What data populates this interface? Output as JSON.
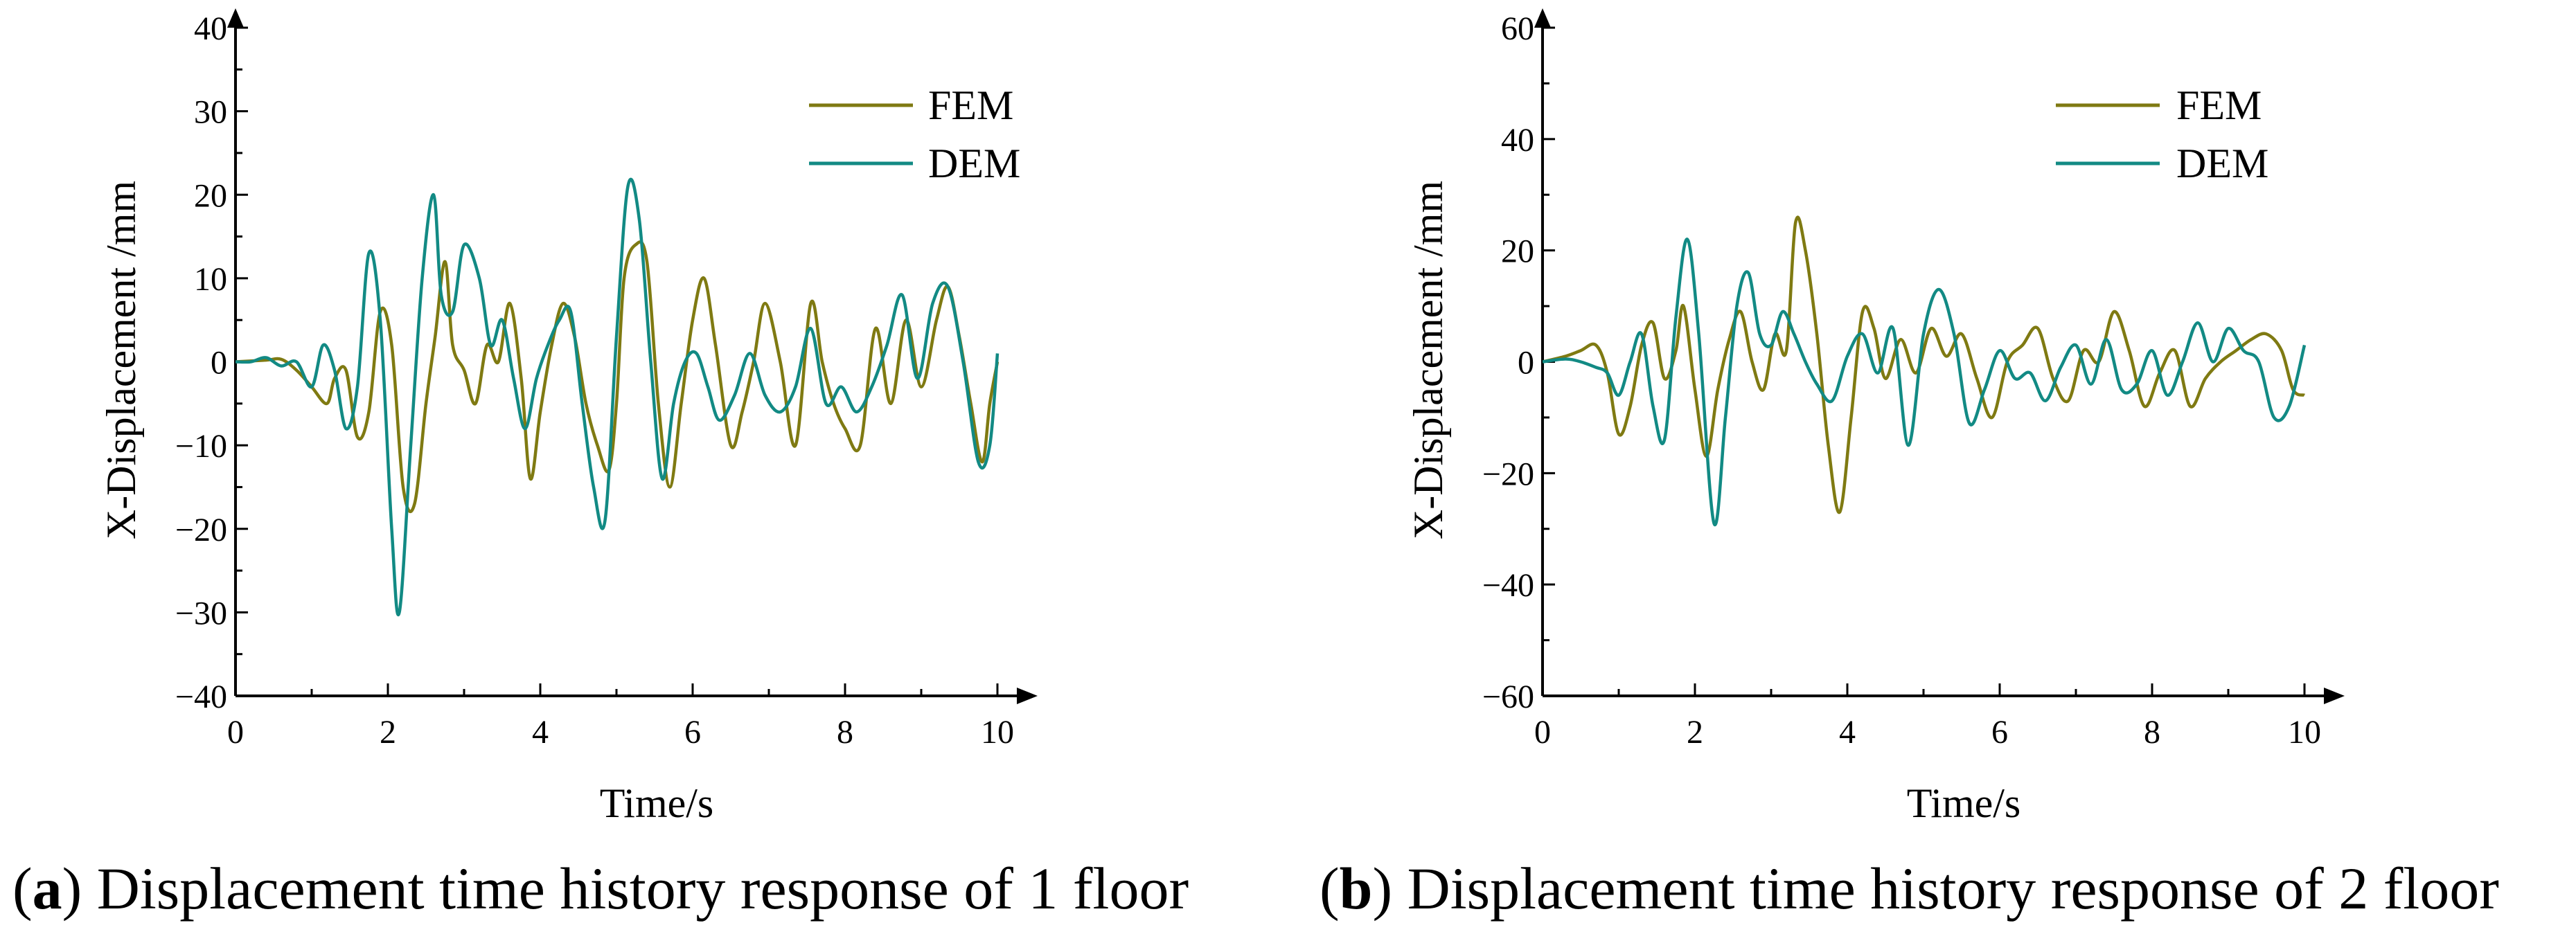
{
  "colors": {
    "fem": "#7f7a12",
    "dem": "#128a84",
    "axis": "#000000"
  },
  "chart_data": [
    {
      "type": "line",
      "panel": "a",
      "caption_label": "a",
      "caption_text": "Displacement time history response of 1 floor",
      "xlabel": "Time/s",
      "ylabel": "X-Displacement /mm",
      "xlim": [
        0,
        10
      ],
      "ylim": [
        -40,
        40
      ],
      "xticks": [
        0,
        2,
        4,
        6,
        8,
        10
      ],
      "yticks": [
        -40,
        -30,
        -20,
        -10,
        0,
        10,
        20,
        30,
        40
      ],
      "ytick_labels": [
        "−40",
        "−30",
        "−20",
        "−10",
        "0",
        "10",
        "20",
        "30",
        "40"
      ],
      "legend_position": "top-right",
      "series": [
        {
          "name": "FEM",
          "color_key": "fem",
          "x": [
            0,
            0.4,
            0.6,
            0.8,
            1.0,
            1.2,
            1.3,
            1.45,
            1.6,
            1.75,
            1.9,
            2.05,
            2.2,
            2.35,
            2.5,
            2.62,
            2.75,
            2.85,
            3.0,
            3.15,
            3.3,
            3.45,
            3.6,
            3.75,
            3.87,
            4.0,
            4.15,
            4.3,
            4.45,
            4.6,
            4.75,
            4.9,
            5.0,
            5.1,
            5.25,
            5.4,
            5.55,
            5.7,
            5.85,
            6.0,
            6.15,
            6.3,
            6.5,
            6.65,
            6.8,
            6.95,
            7.15,
            7.35,
            7.55,
            7.7,
            7.85,
            8.0,
            8.2,
            8.4,
            8.6,
            8.8,
            9.0,
            9.2,
            9.35,
            9.5,
            9.65,
            9.8,
            9.9,
            10.0
          ],
          "values": [
            0,
            0.2,
            0.3,
            -1,
            -3,
            -5,
            -2,
            -1,
            -9,
            -6,
            6,
            2,
            -15,
            -17,
            -5,
            3,
            12,
            2,
            -1,
            -5,
            2,
            0,
            7,
            -2,
            -14,
            -6,
            2,
            7,
            3,
            -5,
            -10,
            -13,
            -5,
            10,
            14,
            12,
            -5,
            -15,
            -5,
            5,
            10,
            2,
            -10,
            -6,
            0,
            7,
            0,
            -10,
            7,
            0,
            -5,
            -8,
            -10,
            4,
            -5,
            5,
            -3,
            5,
            9,
            3,
            -5,
            -12,
            -5,
            0
          ]
        },
        {
          "name": "DEM",
          "color_key": "dem",
          "x": [
            0,
            0.2,
            0.4,
            0.6,
            0.8,
            1.0,
            1.15,
            1.3,
            1.45,
            1.6,
            1.75,
            1.9,
            2.05,
            2.15,
            2.3,
            2.45,
            2.6,
            2.7,
            2.85,
            3.0,
            3.2,
            3.35,
            3.5,
            3.65,
            3.8,
            3.95,
            4.1,
            4.25,
            4.4,
            4.55,
            4.7,
            4.85,
            5.0,
            5.15,
            5.3,
            5.45,
            5.6,
            5.75,
            5.9,
            6.05,
            6.2,
            6.35,
            6.55,
            6.75,
            6.95,
            7.15,
            7.35,
            7.55,
            7.75,
            7.95,
            8.15,
            8.35,
            8.55,
            8.75,
            8.95,
            9.15,
            9.35,
            9.55,
            9.75,
            9.9,
            10.0
          ],
          "values": [
            0,
            0,
            0.5,
            -0.5,
            0,
            -3,
            2,
            -1,
            -8,
            -3,
            13,
            5,
            -20,
            -30,
            -10,
            10,
            20,
            8,
            6,
            14,
            10,
            2,
            5,
            -2,
            -8,
            -2,
            2,
            5,
            6,
            -5,
            -15,
            -19,
            3,
            21,
            17,
            0,
            -14,
            -5,
            0,
            1,
            -3,
            -7,
            -4,
            1,
            -4,
            -6,
            -3,
            4,
            -5,
            -3,
            -6,
            -3,
            2,
            8,
            -2,
            7,
            9,
            0,
            -12,
            -10,
            1
          ]
        }
      ]
    },
    {
      "type": "line",
      "panel": "b",
      "caption_label": "b",
      "caption_text": "Displacement time history response of 2 floor",
      "xlabel": "Time/s",
      "ylabel": "X-Displacement /mm",
      "xlim": [
        0,
        10
      ],
      "ylim": [
        -60,
        60
      ],
      "xticks": [
        0,
        2,
        4,
        6,
        8,
        10
      ],
      "yticks": [
        -60,
        -40,
        -20,
        0,
        20,
        40,
        60
      ],
      "ytick_labels": [
        "−60",
        "−40",
        "−20",
        "0",
        "20",
        "40",
        "60"
      ],
      "legend_position": "top-right",
      "series": [
        {
          "name": "FEM",
          "color_key": "fem",
          "x": [
            0,
            0.3,
            0.5,
            0.7,
            0.85,
            1.0,
            1.15,
            1.3,
            1.45,
            1.6,
            1.75,
            1.85,
            2.0,
            2.15,
            2.3,
            2.45,
            2.6,
            2.75,
            2.9,
            3.05,
            3.2,
            3.32,
            3.45,
            3.6,
            3.75,
            3.9,
            4.05,
            4.2,
            4.35,
            4.5,
            4.7,
            4.9,
            5.1,
            5.3,
            5.5,
            5.7,
            5.9,
            6.1,
            6.3,
            6.5,
            6.7,
            6.9,
            7.1,
            7.3,
            7.5,
            7.7,
            7.9,
            8.1,
            8.3,
            8.5,
            8.7,
            8.9,
            9.1,
            9.3,
            9.5,
            9.7,
            9.85,
            10.0
          ],
          "values": [
            0,
            1,
            2,
            3,
            -2,
            -13,
            -8,
            3,
            7,
            -3,
            2,
            10,
            -5,
            -17,
            -5,
            4,
            9,
            0,
            -5,
            5,
            2,
            25,
            20,
            5,
            -15,
            -27,
            -10,
            9,
            6,
            -3,
            4,
            -2,
            6,
            1,
            5,
            -3,
            -10,
            0,
            3,
            6,
            -3,
            -7,
            2,
            0,
            9,
            2,
            -8,
            -2,
            2,
            -8,
            -3,
            0,
            2,
            4,
            5,
            2,
            -5,
            -6
          ]
        },
        {
          "name": "DEM",
          "color_key": "dem",
          "x": [
            0,
            0.3,
            0.5,
            0.7,
            0.85,
            1.0,
            1.15,
            1.3,
            1.45,
            1.6,
            1.75,
            1.9,
            2.05,
            2.25,
            2.4,
            2.55,
            2.7,
            2.85,
            3.0,
            3.15,
            3.3,
            3.45,
            3.6,
            3.8,
            4.0,
            4.2,
            4.4,
            4.6,
            4.8,
            5.0,
            5.2,
            5.4,
            5.6,
            5.8,
            6.0,
            6.2,
            6.4,
            6.6,
            6.8,
            7.0,
            7.2,
            7.4,
            7.6,
            7.8,
            8.0,
            8.2,
            8.4,
            8.6,
            8.8,
            9.0,
            9.2,
            9.4,
            9.6,
            9.8,
            10.0
          ],
          "values": [
            0,
            0.5,
            0,
            -1,
            -2,
            -6,
            0,
            5,
            -8,
            -14,
            8,
            22,
            5,
            -29,
            -10,
            10,
            16,
            5,
            3,
            9,
            5,
            0,
            -4,
            -7,
            1,
            5,
            -2,
            6,
            -15,
            5,
            13,
            5,
            -11,
            -5,
            2,
            -3,
            -2,
            -7,
            -1,
            3,
            -4,
            4,
            -5,
            -4,
            2,
            -6,
            0,
            7,
            0,
            6,
            2,
            0,
            -10,
            -8,
            3
          ]
        }
      ]
    }
  ]
}
